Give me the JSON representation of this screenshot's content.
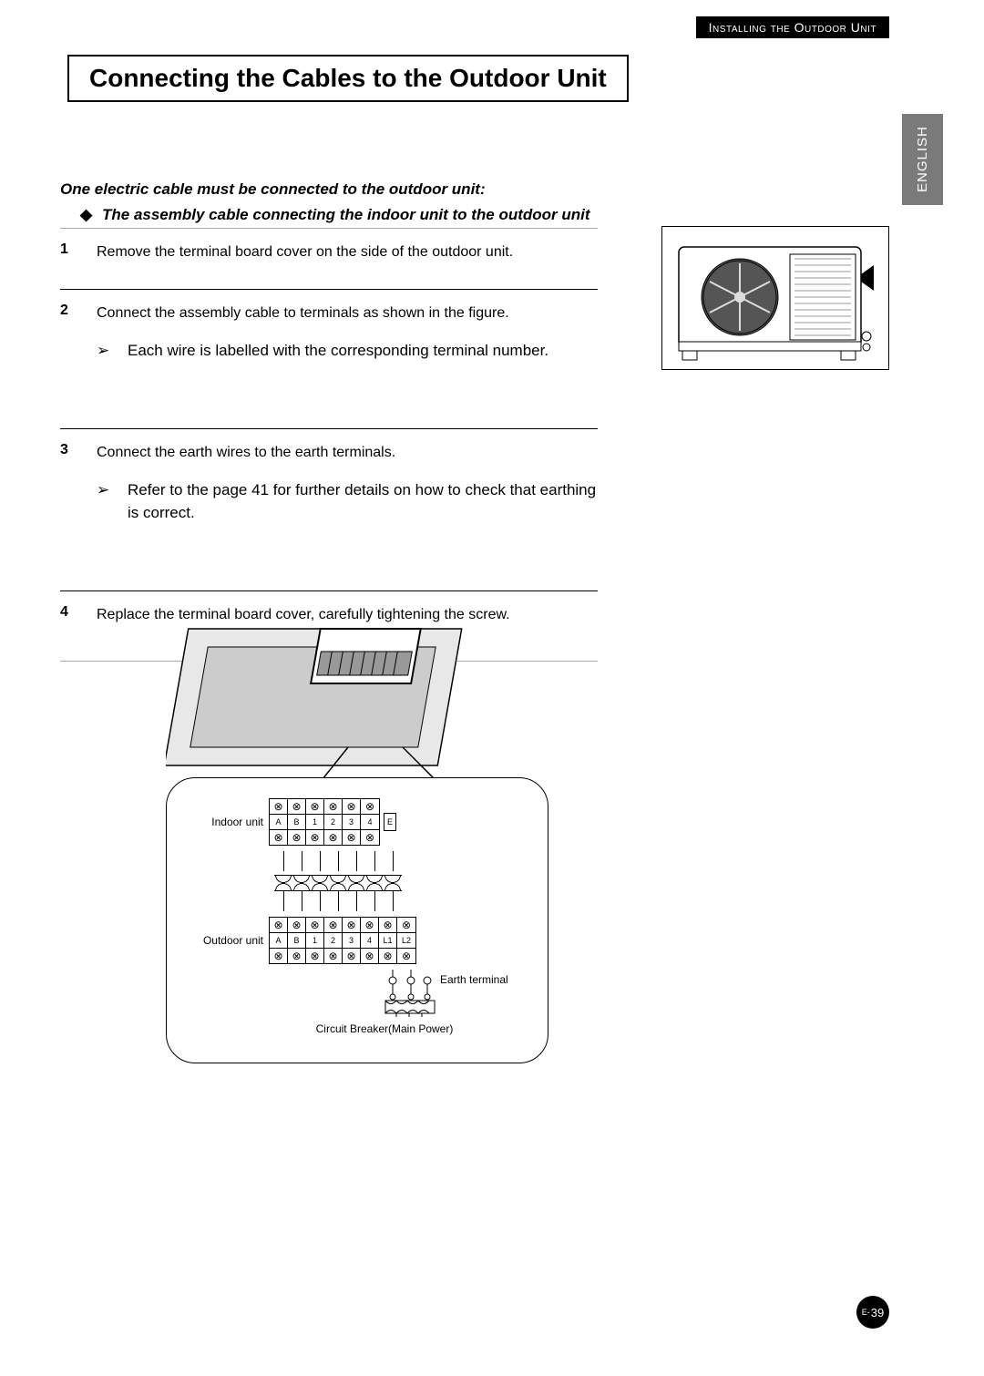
{
  "header": {
    "section": "Installing the Outdoor Unit"
  },
  "title": "Connecting the Cables to the Outdoor Unit",
  "lang_tab": "ENGLISH",
  "intro": "One electric cable must be connected to the outdoor unit:",
  "bullet": "The assembly cable connecting the indoor unit to the outdoor unit",
  "steps": [
    {
      "num": "1",
      "text": "Remove the terminal board cover on the side of the outdoor unit.",
      "subs": []
    },
    {
      "num": "2",
      "text": "Connect the assembly cable to terminals as shown in the figure.",
      "subs": [
        "Each wire is labelled with the corresponding terminal number."
      ],
      "extra_space": true
    },
    {
      "num": "3",
      "text": "Connect the earth wires to the earth terminals.",
      "subs": [
        "Refer to the page 41 for further details on how to check that earthing is correct."
      ],
      "extra_space": true
    },
    {
      "num": "4",
      "text": "Replace the terminal board cover, carefully tightening the screw.",
      "subs": []
    }
  ],
  "diagram": {
    "indoor_label": "Indoor unit",
    "outdoor_label": "Outdoor unit",
    "indoor_terminals": [
      "A",
      "B",
      "1",
      "2",
      "3",
      "4"
    ],
    "indoor_extra": "E",
    "outdoor_terminals": [
      "A",
      "B",
      "1",
      "2",
      "3",
      "4",
      "L1",
      "L2"
    ],
    "earth_label": "Earth terminal",
    "circuit_breaker": "Circuit Breaker(Main Power)"
  },
  "page": {
    "prefix": "E-",
    "num": "39"
  },
  "colors": {
    "text": "#000000",
    "background": "#ffffff",
    "header_bg": "#000000",
    "header_fg": "#ffffff",
    "tab_bg": "#7a7a7a",
    "rule_light": "#aaaaaa"
  }
}
